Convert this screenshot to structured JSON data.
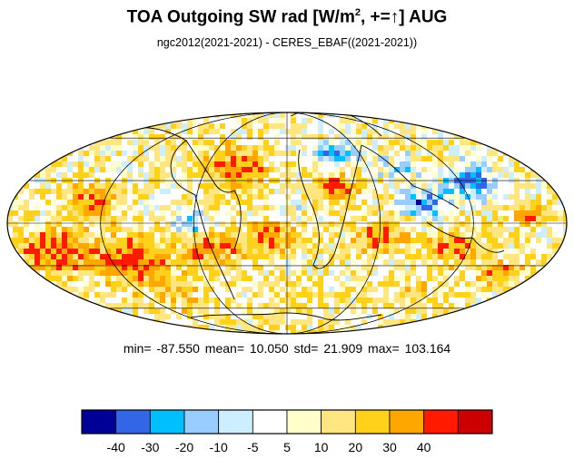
{
  "title": {
    "prefix": "TOA Outgoing SW rad [W/m",
    "superscript": "2",
    "mid": ", +=",
    "arrow": "↑",
    "suffix": "] AUG"
  },
  "subtitle": "ngc2012(2021-2021) - CERES_EBAF((2021-2021))",
  "stats": "min= -87.550   mean=  10.050   std=  21.909   max= 103.164",
  "chart_data": {
    "type": "heatmap",
    "projection": "mollweide",
    "grid": true,
    "coastlines": true,
    "legend_placement": "bottom",
    "colorbar": {
      "colors": [
        "#000099",
        "#3366e6",
        "#00bfff",
        "#99ccff",
        "#cceeff",
        "#ffffff",
        "#ffffcc",
        "#ffe680",
        "#ffd11a",
        "#ffa600",
        "#ff1a00",
        "#cc0000"
      ],
      "ticks": [
        "-40",
        "-30",
        "-20",
        "-10",
        "-5",
        "5",
        "10",
        "20",
        "30",
        "40"
      ],
      "levels": [
        -40,
        -30,
        -20,
        -10,
        -5,
        5,
        10,
        20,
        30,
        40
      ]
    },
    "statistics": {
      "min": -87.55,
      "mean": 10.05,
      "std": 21.909,
      "max": 103.164
    }
  }
}
